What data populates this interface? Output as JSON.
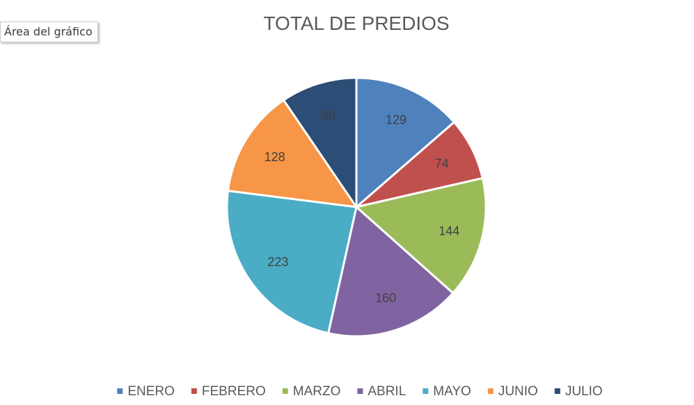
{
  "tooltip": {
    "text": "Área del gráfico"
  },
  "chart_data": {
    "type": "pie",
    "title": "TOTAL DE PREDIOS",
    "categories": [
      "ENERO",
      "FEBRERO",
      "MARZO",
      "ABRIL",
      "MAYO",
      "JUNIO",
      "JULIO"
    ],
    "values": [
      129,
      74,
      144,
      160,
      223,
      128,
      90
    ],
    "colors": [
      "#4f81bd",
      "#c0504d",
      "#9bbb59",
      "#8064a2",
      "#4bacc6",
      "#f79646",
      "#2c4d75"
    ],
    "data_labels": true,
    "legend_position": "bottom"
  }
}
